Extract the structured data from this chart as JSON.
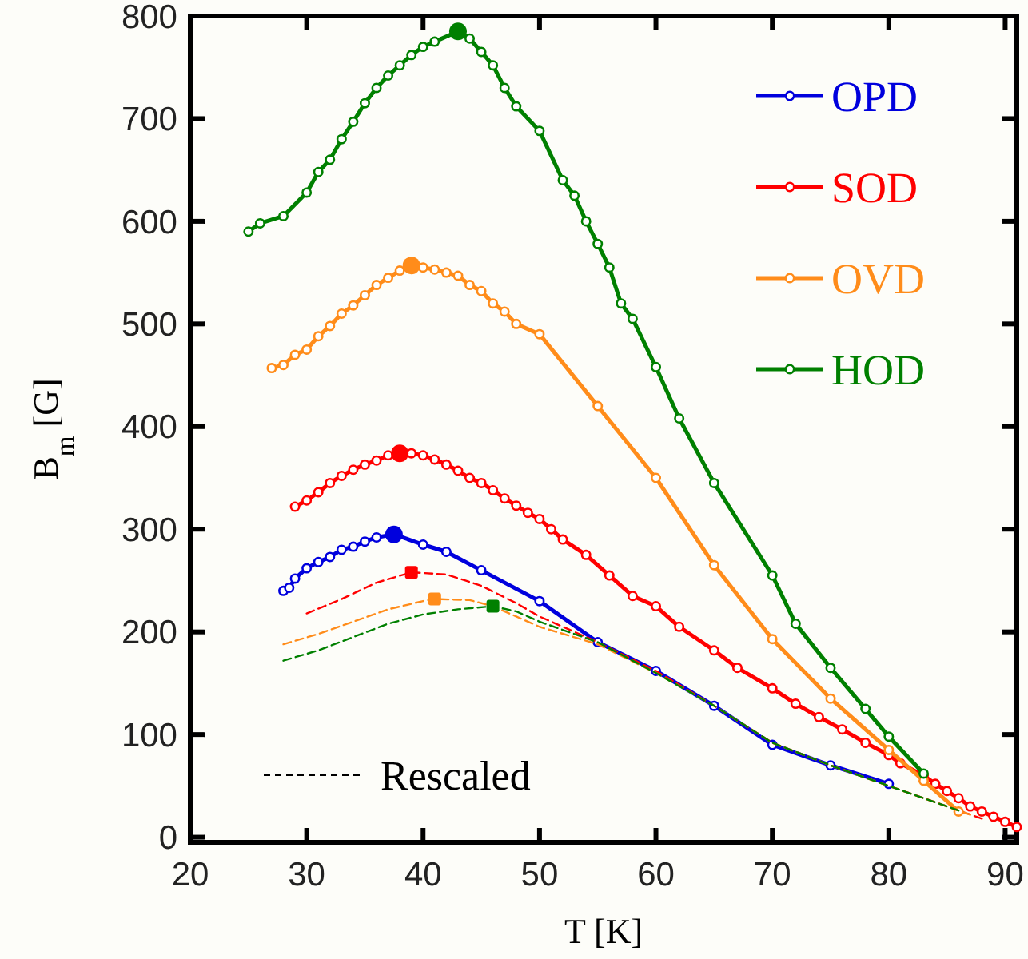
{
  "chart_data": {
    "type": "line",
    "xlabel": "T [K]",
    "ylabel": "B$_{m}$ [G]",
    "xlim": [
      20,
      91
    ],
    "ylim": [
      -5,
      800
    ],
    "xticks": [
      20,
      30,
      40,
      50,
      60,
      70,
      80,
      90
    ],
    "yticks": [
      0,
      100,
      200,
      300,
      400,
      500,
      600,
      700,
      800
    ],
    "grid": false,
    "legend": "top right",
    "marker": "circle",
    "line_style": "solid",
    "annotations": [
      "Rescaled"
    ],
    "series": [
      {
        "name": "OPD",
        "color": "#0000dd",
        "x": [
          28,
          28.5,
          29,
          30,
          31,
          32,
          33,
          34,
          35,
          36,
          37,
          37.5,
          38,
          40,
          42,
          45,
          50,
          55,
          60,
          65,
          70,
          75,
          80
        ],
        "values": [
          240,
          243,
          252,
          262,
          268,
          273,
          280,
          283,
          288,
          292,
          null,
          295,
          null,
          285,
          278,
          260,
          230,
          190,
          162,
          128,
          90,
          70,
          52
        ]
      },
      {
        "name": "SOD",
        "color": "#ff0000",
        "x": [
          29,
          30,
          31,
          32,
          33,
          34,
          35,
          36,
          37,
          38,
          39,
          40,
          41,
          42,
          43,
          44,
          45,
          46,
          47,
          48,
          49,
          50,
          51,
          52,
          54,
          56,
          58,
          60,
          62,
          65,
          67,
          70,
          72,
          74,
          76,
          78,
          80,
          81,
          83,
          84,
          85,
          86,
          87,
          88,
          89,
          90,
          91
        ],
        "values": [
          322,
          328,
          336,
          345,
          352,
          358,
          363,
          367,
          372,
          374,
          374,
          372,
          368,
          363,
          357,
          350,
          345,
          338,
          330,
          323,
          316,
          310,
          300,
          290,
          275,
          255,
          235,
          225,
          205,
          182,
          165,
          145,
          130,
          117,
          105,
          92,
          80,
          72,
          60,
          52,
          45,
          38,
          30,
          25,
          20,
          15,
          10
        ]
      },
      {
        "name": "OVD",
        "color": "#ff8c1a",
        "x": [
          27,
          28,
          29,
          30,
          31,
          32,
          33,
          34,
          35,
          36,
          37,
          38,
          39,
          40,
          41,
          42,
          43,
          44,
          45,
          46,
          47,
          48,
          50,
          55,
          60,
          65,
          70,
          75,
          80,
          83,
          86
        ],
        "values": [
          457,
          460,
          470,
          475,
          488,
          498,
          510,
          518,
          528,
          538,
          545,
          552,
          557,
          555,
          553,
          550,
          547,
          538,
          532,
          520,
          512,
          500,
          490,
          420,
          350,
          265,
          193,
          135,
          85,
          55,
          25
        ]
      },
      {
        "name": "HOD",
        "color": "#008000",
        "x": [
          25,
          26,
          28,
          30,
          31,
          32,
          33,
          34,
          35,
          36,
          37,
          38,
          39,
          40,
          41,
          43,
          44,
          45,
          46,
          47,
          48,
          50,
          52,
          53,
          54,
          55,
          56,
          57,
          58,
          60,
          62,
          65,
          70,
          72,
          75,
          78,
          80,
          83
        ],
        "values": [
          590,
          598,
          605,
          628,
          648,
          660,
          680,
          697,
          715,
          730,
          742,
          752,
          762,
          770,
          775,
          785,
          778,
          765,
          752,
          730,
          712,
          688,
          640,
          625,
          600,
          578,
          555,
          520,
          505,
          458,
          408,
          345,
          255,
          208,
          165,
          125,
          98,
          62
        ]
      },
      {
        "type": "line",
        "color": "#ff0000",
        "marker": "none",
        "line_style": "dashed",
        "x": [
          30,
          33,
          36,
          39,
          42,
          45,
          48,
          50,
          55,
          60,
          65,
          70,
          75,
          80,
          85,
          88
        ],
        "values": [
          218,
          232,
          248,
          258,
          256,
          245,
          228,
          215,
          190,
          162,
          128,
          92,
          70,
          50,
          30,
          18
        ]
      },
      {
        "type": "line",
        "color": "#ff8c1a",
        "marker": "none",
        "line_style": "dashed",
        "x": [
          28,
          31,
          34,
          37,
          40,
          41,
          44,
          46,
          48,
          50,
          55,
          60,
          65,
          70,
          75,
          80,
          85,
          87
        ],
        "values": [
          188,
          198,
          210,
          222,
          230,
          232,
          231,
          225,
          215,
          205,
          188,
          160,
          128,
          92,
          70,
          50,
          30,
          22
        ]
      },
      {
        "type": "line",
        "color": "#008000",
        "marker": "none",
        "line_style": "dashed",
        "x": [
          28,
          31,
          34,
          37,
          40,
          43,
          46,
          48,
          50,
          55,
          60,
          65,
          70,
          75,
          80,
          85,
          86
        ],
        "values": [
          172,
          182,
          195,
          208,
          217,
          222,
          225,
          220,
          210,
          190,
          160,
          128,
          92,
          70,
          50,
          30,
          26
        ]
      },
      {
        "type": "scatter",
        "x": [
          37.5,
          38,
          39,
          43
        ],
        "values": [
          295,
          374,
          557,
          785
        ],
        "colors": [
          "#0000dd",
          "#ff0000",
          "#ff8c1a",
          "#008000"
        ]
      },
      {
        "type": "scatter",
        "marker": "square",
        "x": [
          39,
          41,
          46
        ],
        "values": [
          258,
          232,
          225
        ],
        "colors": [
          "#ff0000",
          "#ff8c1a",
          "#008000"
        ]
      }
    ]
  }
}
